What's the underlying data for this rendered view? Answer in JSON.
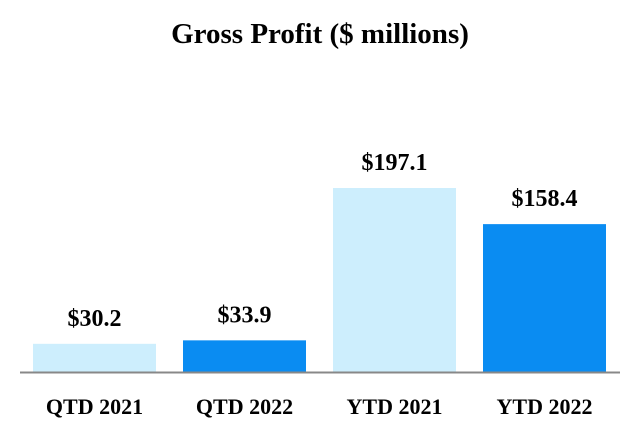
{
  "chart_data": {
    "type": "bar",
    "title": "Gross Profit ($ millions)",
    "xlabel": "",
    "ylabel": "",
    "categories": [
      "QTD 2021",
      "QTD 2022",
      "YTD 2021",
      "YTD 2022"
    ],
    "values": [
      30.2,
      33.9,
      197.1,
      158.4
    ],
    "value_labels": [
      "$30.2",
      "$33.9",
      "$197.1",
      "$158.4"
    ],
    "bar_colors": [
      "#cdeefd",
      "#0a8cf2",
      "#cdeefd",
      "#0a8cf2"
    ],
    "axis_color": "#888888",
    "ylim": [
      0,
      197.1
    ],
    "grid": false,
    "legend": "none"
  }
}
